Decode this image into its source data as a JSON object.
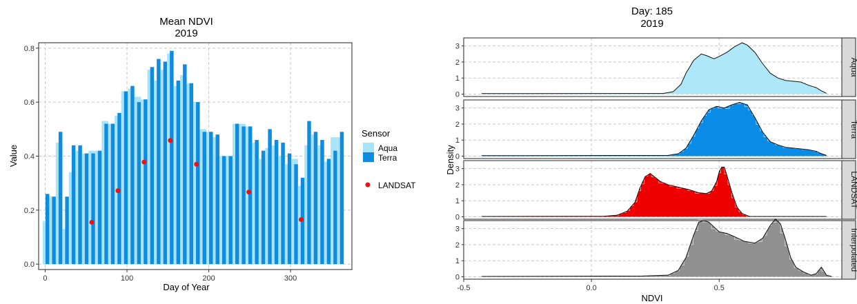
{
  "chart_data": [
    {
      "type": "bar",
      "title": "Mean NDVI",
      "subtitle": "2019",
      "xlabel": "Day of Year",
      "ylabel": "Value",
      "xlim": [
        -8,
        375
      ],
      "ylim": [
        -0.02,
        0.82
      ],
      "xticks": [
        {
          "v": 0,
          "t": "0"
        },
        {
          "v": 100,
          "t": "100"
        },
        {
          "v": 200,
          "t": "200"
        },
        {
          "v": 300,
          "t": "300"
        }
      ],
      "yticks": [
        {
          "v": 0.0,
          "t": "0.0"
        },
        {
          "v": 0.2,
          "t": "0.2"
        },
        {
          "v": 0.4,
          "t": "0.4"
        },
        {
          "v": 0.6,
          "t": "0.6"
        },
        {
          "v": 0.8,
          "t": "0.8"
        }
      ],
      "grid": true,
      "legend": {
        "title": "Sensor",
        "position": "right",
        "items": [
          {
            "name": "Aqua",
            "color": "#a8e4f7"
          },
          {
            "name": "Terra",
            "color": "#0f8be0"
          }
        ],
        "points": [
          {
            "name": "LANDSAT",
            "color": "#ee1111"
          }
        ]
      },
      "days": [
        1,
        9,
        17,
        25,
        33,
        41,
        49,
        57,
        65,
        73,
        81,
        89,
        97,
        105,
        113,
        121,
        129,
        137,
        145,
        153,
        161,
        169,
        177,
        185,
        193,
        201,
        209,
        217,
        225,
        233,
        241,
        249,
        257,
        265,
        273,
        281,
        289,
        297,
        305,
        313,
        321,
        329,
        337,
        345,
        353,
        361
      ],
      "series": [
        {
          "name": "Aqua",
          "color": "#a8e4f7",
          "values": [
            0.16,
            0.25,
            0.45,
            0.13,
            0.34,
            0.42,
            0.41,
            0.42,
            0.42,
            0.53,
            0.52,
            0.55,
            0.64,
            0.65,
            0.62,
            0.61,
            0.72,
            0.68,
            0.72,
            0.78,
            0.66,
            0.7,
            0.67,
            0.6,
            0.5,
            0.49,
            0.47,
            0.4,
            0.4,
            0.52,
            0.52,
            0.51,
            0.45,
            0.39,
            0.43,
            0.44,
            0.4,
            0.37,
            0.39,
            0.29,
            0.44,
            0.48,
            0.44,
            0.38,
            0.47,
            0.47
          ]
        },
        {
          "name": "Terra",
          "color": "#0f8be0",
          "values": [
            0.26,
            0.25,
            0.49,
            0.25,
            0.44,
            0.44,
            0.41,
            0.41,
            0.42,
            0.52,
            0.52,
            0.56,
            0.64,
            0.66,
            0.6,
            0.61,
            0.73,
            0.76,
            0.75,
            0.79,
            0.68,
            0.74,
            0.67,
            0.6,
            0.49,
            0.49,
            0.48,
            0.4,
            0.4,
            0.52,
            0.51,
            0.51,
            0.46,
            0.42,
            0.5,
            0.46,
            0.45,
            0.41,
            0.37,
            0.32,
            0.53,
            0.49,
            0.46,
            0.39,
            0.42,
            0.49
          ]
        }
      ],
      "points": {
        "name": "LANDSAT",
        "color": "#ee1111",
        "x": [
          57,
          89,
          121,
          153,
          185,
          249,
          313
        ],
        "y": [
          0.155,
          0.272,
          0.378,
          0.458,
          0.37,
          0.267,
          0.165
        ]
      }
    },
    {
      "type": "area",
      "title": "Day: 185",
      "subtitle": "2019",
      "xlabel": "NDVI",
      "ylabel": "Density",
      "xlim": [
        -0.5,
        0.98
      ],
      "ylim": [
        -0.15,
        3.5
      ],
      "xticks": [
        {
          "v": -0.5,
          "t": "-0.5"
        },
        {
          "v": 0.0,
          "t": "0.0"
        },
        {
          "v": 0.5,
          "t": "0.5"
        }
      ],
      "yticks": [
        {
          "v": 0,
          "t": "0"
        },
        {
          "v": 1,
          "t": "1"
        },
        {
          "v": 2,
          "t": "2"
        },
        {
          "v": 3,
          "t": "3"
        }
      ],
      "grid": true,
      "panels": [
        {
          "name": "Aqua",
          "color": "#aee8f8",
          "histogram": false,
          "x": [
            -0.43,
            0.28,
            0.32,
            0.35,
            0.37,
            0.4,
            0.43,
            0.45,
            0.48,
            0.5,
            0.53,
            0.56,
            0.59,
            0.61,
            0.64,
            0.67,
            0.7,
            0.73,
            0.76,
            0.79,
            0.82,
            0.85,
            0.88,
            0.9,
            0.92
          ],
          "y": [
            0.03,
            0.04,
            0.15,
            0.6,
            1.3,
            2.1,
            2.5,
            2.4,
            2.2,
            2.35,
            2.6,
            2.95,
            3.2,
            3.05,
            2.6,
            1.9,
            1.3,
            1.0,
            0.85,
            0.8,
            0.75,
            0.55,
            0.4,
            0.2,
            0.05
          ]
        },
        {
          "name": "Terra",
          "color": "#0a8be6",
          "histogram": true,
          "x": [
            -0.43,
            0.3,
            0.34,
            0.37,
            0.4,
            0.43,
            0.46,
            0.49,
            0.52,
            0.55,
            0.58,
            0.61,
            0.64,
            0.67,
            0.7,
            0.73,
            0.76,
            0.79,
            0.82,
            0.85,
            0.88,
            0.9,
            0.92
          ],
          "y": [
            0.03,
            0.05,
            0.15,
            0.5,
            1.3,
            2.2,
            2.9,
            3.1,
            3.0,
            3.2,
            3.35,
            3.2,
            2.4,
            1.5,
            0.9,
            0.7,
            0.55,
            0.5,
            0.45,
            0.4,
            0.3,
            0.15,
            0.05
          ]
        },
        {
          "name": "LANDSAT",
          "color": "#ee0000",
          "histogram": true,
          "x": [
            -0.43,
            0.05,
            0.1,
            0.14,
            0.17,
            0.19,
            0.21,
            0.23,
            0.25,
            0.27,
            0.3,
            0.34,
            0.38,
            0.42,
            0.45,
            0.47,
            0.49,
            0.5,
            0.51,
            0.52,
            0.53,
            0.55,
            0.57,
            0.59,
            0.62,
            0.92
          ],
          "y": [
            0.02,
            0.04,
            0.1,
            0.35,
            0.9,
            1.8,
            2.5,
            2.7,
            2.45,
            2.2,
            2.0,
            1.85,
            1.7,
            1.5,
            1.45,
            1.6,
            2.2,
            2.8,
            3.1,
            3.1,
            2.6,
            1.5,
            0.6,
            0.2,
            0.02,
            0.02
          ]
        },
        {
          "name": "Interpolated",
          "color": "#909090",
          "histogram": true,
          "x": [
            -0.43,
            0.2,
            0.3,
            0.34,
            0.37,
            0.4,
            0.42,
            0.44,
            0.46,
            0.48,
            0.5,
            0.53,
            0.56,
            0.6,
            0.64,
            0.67,
            0.7,
            0.72,
            0.74,
            0.76,
            0.78,
            0.8,
            0.83,
            0.86,
            0.88,
            0.9,
            0.92,
            0.94
          ],
          "y": [
            0.02,
            0.05,
            0.1,
            0.4,
            1.2,
            2.6,
            3.4,
            3.5,
            3.4,
            3.1,
            2.8,
            2.7,
            2.5,
            2.2,
            2.1,
            2.4,
            3.2,
            3.6,
            3.3,
            2.3,
            1.2,
            0.6,
            0.3,
            0.1,
            0.2,
            0.6,
            0.1,
            0.02
          ]
        }
      ]
    }
  ]
}
